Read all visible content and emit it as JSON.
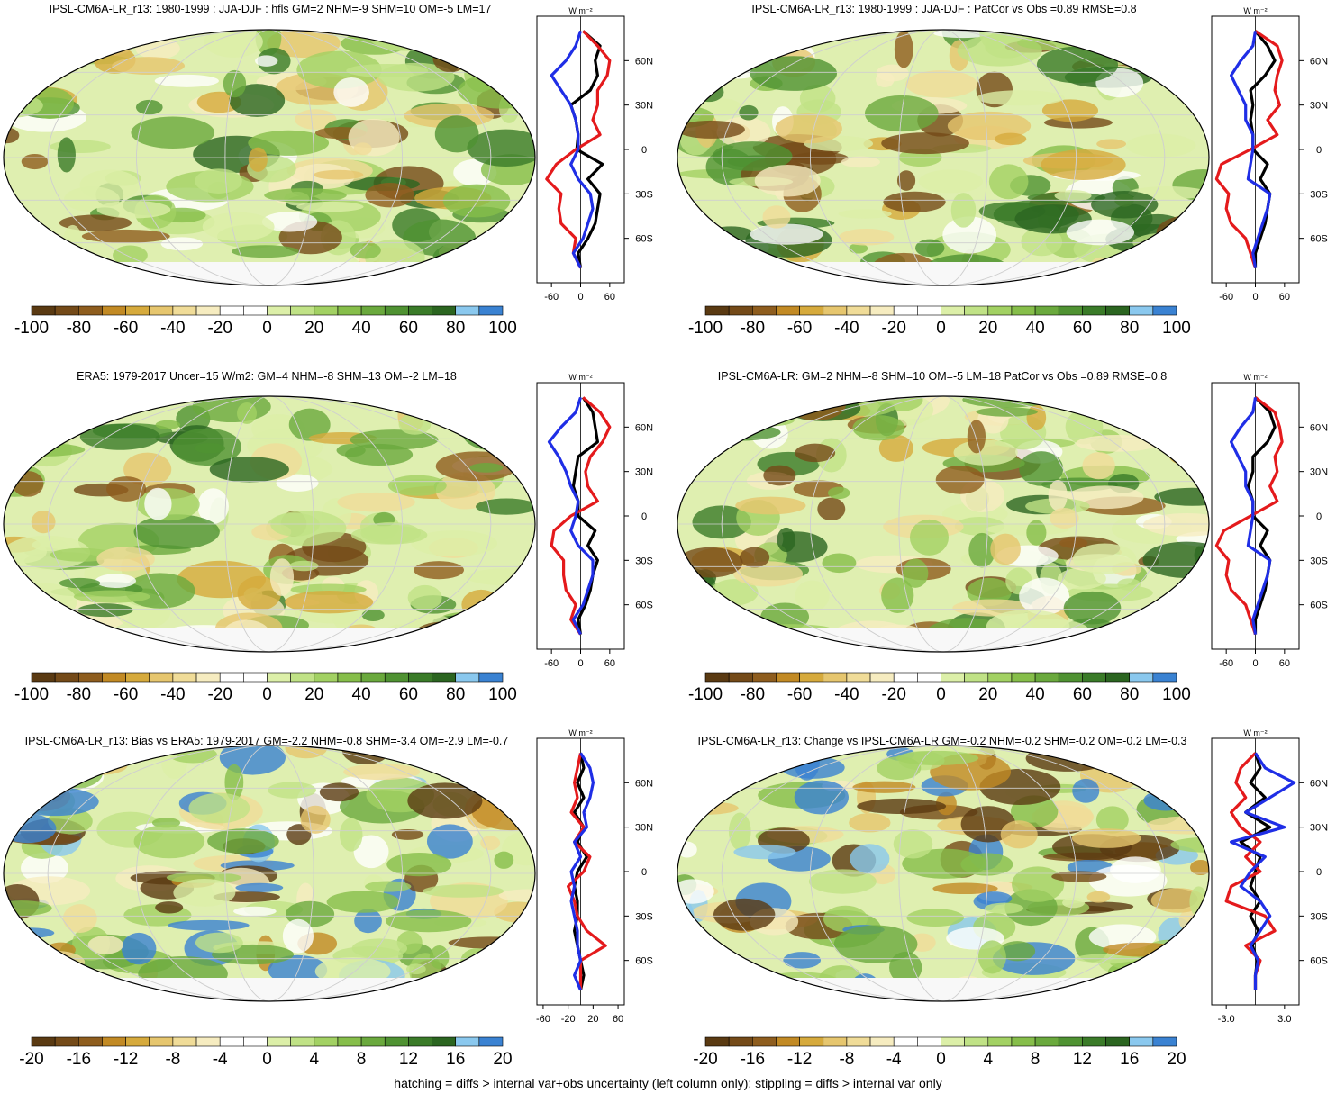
{
  "figure": {
    "footer": "hatching = diffs > internal var+obs uncertainty (left column only); stippling = diffs > internal var only"
  },
  "palette": [
    "#5a3a12",
    "#744a18",
    "#8e5d1e",
    "#c28a24",
    "#d6aa3c",
    "#e6c66e",
    "#f0dc98",
    "#f6ecc0",
    "#ffffff",
    "#ffffff",
    "#dcefa8",
    "#c0e286",
    "#a2d163",
    "#86be4a",
    "#6aa93d",
    "#4f9232",
    "#3a7b28",
    "#2b6520",
    "#8ac8ee",
    "#3a82d2"
  ],
  "zonal_colors": {
    "obs": "#e41a1c",
    "model": "#000000",
    "other": "#1f2ee6"
  },
  "chart_data": [
    {
      "type": "heatmap",
      "title": "IPSL-CM6A-LR_r13: 1980-1999 : JJA-DJF : hfls GM=2 NHM=-9 SHM=10 OM=-5 LM=17",
      "colorbar_ticks": [
        "-100",
        "-80",
        "-60",
        "-40",
        "-20",
        "0",
        "20",
        "40",
        "60",
        "80",
        "100"
      ],
      "zonal_mean": {
        "unit": "W m⁻²",
        "xticks": [
          "-60",
          "0",
          "60"
        ],
        "xlim": [
          -90,
          90
        ],
        "yticks": [
          "60N",
          "30N",
          "0",
          "30S",
          "60S"
        ],
        "lat": [
          80,
          70,
          60,
          50,
          40,
          30,
          20,
          10,
          0,
          -10,
          -20,
          -30,
          -40,
          -50,
          -60,
          -70,
          -80
        ],
        "series": [
          {
            "values": [
              5,
              40,
              30,
              35,
              20,
              -20,
              -10,
              -5,
              -8,
              45,
              15,
              40,
              35,
              30,
              15,
              -5,
              0
            ],
            "role": "model"
          },
          {
            "values": [
              5,
              35,
              60,
              55,
              35,
              35,
              25,
              40,
              -10,
              -50,
              -70,
              -40,
              -45,
              -40,
              -10,
              -15,
              0
            ],
            "role": "obs"
          },
          {
            "values": [
              0,
              -10,
              -30,
              -60,
              -40,
              -20,
              -10,
              -5,
              -5,
              -20,
              -5,
              20,
              25,
              15,
              5,
              -15,
              0
            ],
            "role": "other"
          }
        ]
      }
    },
    {
      "type": "heatmap",
      "title": "IPSL-CM6A-LR_r13: 1980-1999 : JJA-DJF : PatCor vs Obs =0.89 RMSE=0.8",
      "colorbar_ticks": [
        "-100",
        "-80",
        "-60",
        "-40",
        "-20",
        "0",
        "20",
        "40",
        "60",
        "80",
        "100"
      ],
      "zonal_mean": {
        "unit": "W m⁻²",
        "xticks": [
          "-60",
          "0",
          "60"
        ],
        "xlim": [
          -90,
          90
        ],
        "yticks": [
          "60N",
          "30N",
          "0",
          "30S",
          "60S"
        ],
        "lat": [
          80,
          70,
          60,
          50,
          40,
          30,
          20,
          10,
          0,
          -10,
          -20,
          -30,
          -40,
          -50,
          -60,
          -70,
          -80
        ],
        "series": [
          {
            "values": [
              0,
              25,
              40,
              20,
              -10,
              -5,
              -10,
              -5,
              -5,
              25,
              10,
              30,
              25,
              20,
              10,
              0,
              0
            ],
            "role": "model"
          },
          {
            "values": [
              0,
              45,
              55,
              45,
              40,
              50,
              25,
              45,
              -10,
              -70,
              -80,
              -55,
              -60,
              -50,
              -20,
              -10,
              0
            ],
            "role": "obs"
          },
          {
            "values": [
              0,
              -5,
              -30,
              -50,
              -35,
              -20,
              -20,
              -5,
              -5,
              -10,
              -15,
              30,
              25,
              15,
              5,
              -5,
              0
            ],
            "role": "other"
          }
        ]
      }
    },
    {
      "type": "heatmap",
      "title": "ERA5: 1979-2017 Uncer=15 W/m2: GM=4 NHM=-8 SHM=13 OM=-2 LM=18",
      "colorbar_ticks": [
        "-100",
        "-80",
        "-60",
        "-40",
        "-20",
        "0",
        "20",
        "40",
        "60",
        "80",
        "100"
      ],
      "zonal_mean": {
        "unit": "W m⁻²",
        "xticks": [
          "-60",
          "0",
          "60"
        ],
        "xlim": [
          -90,
          90
        ],
        "yticks": [
          "60N",
          "30N",
          "0",
          "30S",
          "60S"
        ],
        "lat": [
          80,
          70,
          60,
          50,
          40,
          30,
          20,
          10,
          0,
          -10,
          -20,
          -30,
          -40,
          -50,
          -60,
          -70,
          -80
        ],
        "series": [
          {
            "values": [
              5,
              25,
              30,
              35,
              -5,
              -10,
              -15,
              -5,
              -5,
              30,
              15,
              35,
              25,
              20,
              10,
              -5,
              0
            ],
            "role": "model"
          },
          {
            "values": [
              5,
              40,
              60,
              45,
              20,
              10,
              15,
              35,
              -20,
              -55,
              -60,
              -35,
              -35,
              -30,
              -10,
              -20,
              0
            ],
            "role": "obs"
          },
          {
            "values": [
              0,
              -10,
              -40,
              -65,
              -45,
              -30,
              -20,
              -5,
              -10,
              -20,
              -5,
              25,
              25,
              15,
              5,
              -15,
              0
            ],
            "role": "other"
          }
        ]
      }
    },
    {
      "type": "heatmap",
      "title": "IPSL-CM6A-LR: GM=2 NHM=-8 SHM=10 OM=-5 LM=18 PatCor vs Obs =0.89 RMSE=0.8",
      "colorbar_ticks": [
        "-100",
        "-80",
        "-60",
        "-40",
        "-20",
        "0",
        "20",
        "40",
        "60",
        "80",
        "100"
      ],
      "zonal_mean": {
        "unit": "W m⁻²",
        "xticks": [
          "-60",
          "0",
          "60"
        ],
        "xlim": [
          -90,
          90
        ],
        "yticks": [
          "60N",
          "30N",
          "0",
          "30S",
          "60S"
        ],
        "lat": [
          80,
          70,
          60,
          50,
          40,
          30,
          20,
          10,
          0,
          -10,
          -20,
          -30,
          -40,
          -50,
          -60,
          -70,
          -80
        ],
        "series": [
          {
            "values": [
              0,
              30,
              40,
              25,
              -5,
              -5,
              -15,
              -5,
              -5,
              25,
              10,
              30,
              25,
              20,
              10,
              0,
              0
            ],
            "role": "model"
          },
          {
            "values": [
              0,
              40,
              50,
              55,
              40,
              45,
              30,
              45,
              -10,
              -65,
              -80,
              -55,
              -60,
              -50,
              -20,
              -10,
              0
            ],
            "role": "obs"
          },
          {
            "values": [
              0,
              -5,
              -30,
              -50,
              -35,
              -20,
              -20,
              -5,
              -5,
              -10,
              -15,
              30,
              25,
              15,
              5,
              -5,
              0
            ],
            "role": "other"
          }
        ]
      }
    },
    {
      "type": "heatmap",
      "title": "IPSL-CM6A-LR_r13: Bias vs ERA5: 1979-2017 GM=-2.2 NHM=-0.8 SHM=-3.4 OM=-2.9 LM=-0.7",
      "colorbar_ticks": [
        "-20",
        "-16",
        "-12",
        "-8",
        "-4",
        "0",
        "4",
        "8",
        "12",
        "16",
        "20"
      ],
      "zonal_mean": {
        "unit": "W m⁻²",
        "xticks": [
          "-60",
          "-20",
          "20",
          "60"
        ],
        "xlim": [
          -70,
          70
        ],
        "yticks": [
          "60N",
          "30N",
          "0",
          "30S",
          "60S"
        ],
        "lat": [
          80,
          70,
          60,
          50,
          40,
          30,
          20,
          10,
          0,
          -10,
          -20,
          -30,
          -40,
          -50,
          -60,
          -70,
          -80
        ],
        "series": [
          {
            "values": [
              0,
              5,
              -5,
              5,
              -10,
              5,
              -5,
              10,
              -5,
              -10,
              -5,
              -5,
              -10,
              -5,
              0,
              5,
              0
            ],
            "role": "model"
          },
          {
            "values": [
              0,
              -5,
              -10,
              -5,
              -15,
              5,
              -10,
              15,
              5,
              -20,
              -10,
              -5,
              10,
              40,
              0,
              0,
              0
            ],
            "role": "obs"
          },
          {
            "values": [
              0,
              15,
              20,
              15,
              5,
              10,
              -10,
              0,
              -15,
              -10,
              -15,
              -10,
              -5,
              -5,
              0,
              -10,
              0
            ],
            "role": "other"
          }
        ]
      }
    },
    {
      "type": "heatmap",
      "title": "IPSL-CM6A-LR_r13: Change vs IPSL-CM6A-LR GM=-0.2 NHM=-0.2 SHM=-0.2 OM=-0.2 LM=-0.3",
      "colorbar_ticks": [
        "-20",
        "-16",
        "-12",
        "-8",
        "-4",
        "0",
        "4",
        "8",
        "12",
        "16",
        "20"
      ],
      "zonal_mean": {
        "unit": "W m⁻²",
        "xticks": [
          "-3.0",
          "3.0"
        ],
        "xlim": [
          -4.5,
          4.5
        ],
        "yticks": [
          "60N",
          "30N",
          "0",
          "30S",
          "60S"
        ],
        "lat": [
          80,
          70,
          60,
          50,
          40,
          30,
          20,
          10,
          0,
          -10,
          -20,
          -30,
          -40,
          -50,
          -60,
          -70,
          -80
        ],
        "series": [
          {
            "values": [
              0,
              0.5,
              -0.5,
              1.0,
              -1.0,
              1.5,
              -1.5,
              0.5,
              0,
              -0.5,
              0.5,
              -0.5,
              0.3,
              -0.3,
              0.2,
              0,
              0
            ],
            "role": "model"
          },
          {
            "values": [
              0,
              -1.5,
              -2.0,
              -1.0,
              -2.5,
              -1.5,
              0.5,
              -1.0,
              0.5,
              -2.5,
              -3.0,
              1.0,
              2.0,
              -1.0,
              0.5,
              0,
              0
            ],
            "role": "obs"
          },
          {
            "values": [
              0,
              1.0,
              4.0,
              1.5,
              -1.0,
              3.0,
              -2.5,
              1.0,
              -0.5,
              -1.5,
              0.5,
              1.5,
              0.5,
              -0.5,
              0.3,
              0,
              0
            ],
            "role": "other"
          }
        ]
      }
    }
  ]
}
